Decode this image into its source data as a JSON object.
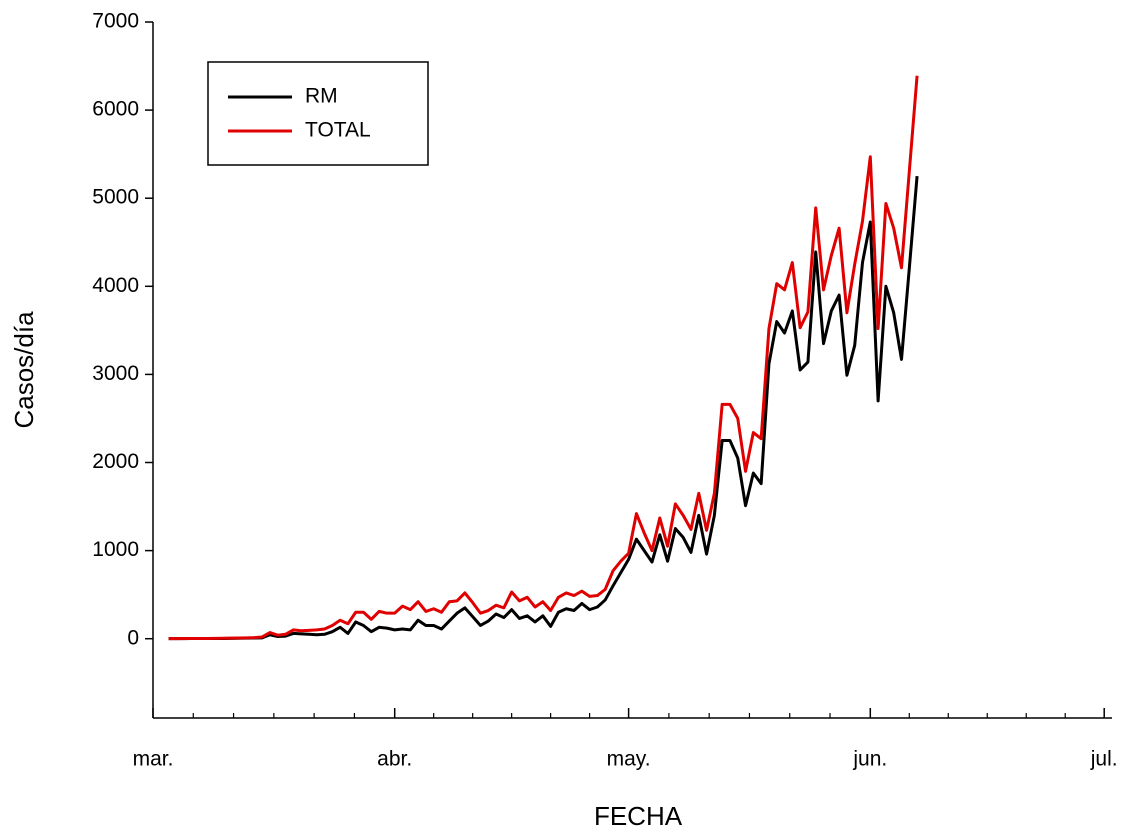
{
  "chart_data": {
    "type": "line",
    "xlabel": "FECHA",
    "ylabel": "Casos/día",
    "x": [
      2,
      3,
      4,
      5,
      6,
      7,
      8,
      9,
      10,
      11,
      12,
      13,
      14,
      15,
      16,
      17,
      18,
      19,
      20,
      21,
      22,
      23,
      24,
      25,
      26,
      27,
      28,
      29,
      30,
      31,
      32,
      33,
      34,
      35,
      36,
      37,
      38,
      39,
      40,
      41,
      42,
      43,
      44,
      45,
      46,
      47,
      48,
      49,
      50,
      51,
      52,
      53,
      54,
      55,
      56,
      57,
      58,
      59,
      60,
      61,
      62,
      63,
      64,
      65,
      66,
      67,
      68,
      69,
      70,
      71,
      72,
      73,
      74,
      75,
      76,
      77,
      78,
      79,
      80,
      81,
      82,
      83,
      84,
      85,
      86,
      87,
      88,
      89,
      90,
      91,
      92,
      93,
      94,
      95,
      96,
      97,
      98
    ],
    "series": [
      {
        "name": "RM",
        "color": "#000000",
        "values": [
          1,
          1,
          1,
          2,
          2,
          2,
          3,
          3,
          4,
          5,
          7,
          8,
          10,
          45,
          25,
          30,
          60,
          55,
          50,
          45,
          50,
          80,
          130,
          60,
          190,
          150,
          80,
          130,
          120,
          100,
          110,
          100,
          210,
          150,
          150,
          110,
          200,
          290,
          350,
          250,
          150,
          200,
          280,
          240,
          330,
          230,
          260,
          190,
          260,
          140,
          300,
          340,
          320,
          400,
          330,
          360,
          440,
          600,
          750,
          900,
          1130,
          1000,
          870,
          1180,
          880,
          1250,
          1150,
          980,
          1400,
          960,
          1400,
          2250,
          2250,
          2050,
          1510,
          1880,
          1760,
          3120,
          3600,
          3470,
          3720,
          3050,
          3140,
          4390,
          3350,
          3720,
          3900,
          2990,
          3330,
          4270,
          4730,
          2700,
          4000,
          3700,
          3170,
          4200,
          5250
        ]
      },
      {
        "name": "TOTAL",
        "color": "#e00000",
        "values": [
          1,
          1,
          2,
          3,
          3,
          3,
          4,
          5,
          7,
          8,
          10,
          12,
          20,
          70,
          40,
          50,
          100,
          90,
          95,
          100,
          110,
          150,
          210,
          170,
          300,
          300,
          220,
          310,
          290,
          290,
          370,
          330,
          420,
          310,
          340,
          300,
          420,
          430,
          520,
          410,
          290,
          320,
          380,
          350,
          530,
          430,
          470,
          360,
          420,
          320,
          470,
          520,
          490,
          540,
          480,
          490,
          560,
          770,
          880,
          970,
          1420,
          1200,
          1000,
          1370,
          1050,
          1530,
          1400,
          1240,
          1650,
          1230,
          1650,
          2660,
          2660,
          2500,
          1900,
          2340,
          2270,
          3520,
          4030,
          3960,
          4270,
          3530,
          3710,
          4890,
          3960,
          4350,
          4660,
          3700,
          4250,
          4740,
          5470,
          3520,
          4940,
          4660,
          4210,
          5300,
          6390
        ]
      }
    ],
    "xlim": [
      0,
      123
    ],
    "xticks": [
      {
        "value": 0,
        "label": "mar."
      },
      {
        "value": 31,
        "label": "abr."
      },
      {
        "value": 61,
        "label": "may."
      },
      {
        "value": 92,
        "label": "jun."
      },
      {
        "value": 122,
        "label": "jul."
      }
    ],
    "ylim": [
      -900,
      7000
    ],
    "yticks": [
      0,
      1000,
      2000,
      3000,
      4000,
      5000,
      6000,
      7000
    ],
    "legend": "upper left"
  }
}
